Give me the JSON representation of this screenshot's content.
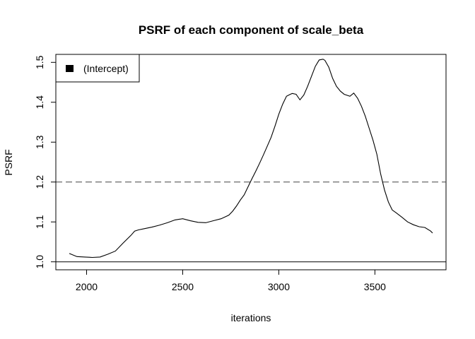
{
  "chart_data": {
    "type": "line",
    "title": "PSRF of each component of scale_beta",
    "xlabel": "iterations",
    "ylabel": "PSRF",
    "xlim": [
      1840,
      3870
    ],
    "ylim": [
      0.98,
      1.52
    ],
    "x_ticks": [
      2000,
      2500,
      3000,
      3500
    ],
    "y_ticks": [
      1.0,
      1.1,
      1.2,
      1.3,
      1.4,
      1.5
    ],
    "x_tick_labels": [
      "2000",
      "2500",
      "3000",
      "3500"
    ],
    "y_tick_labels": [
      "1.0",
      "1.1",
      "1.2",
      "1.3",
      "1.4",
      "1.5"
    ],
    "reference_lines": [
      {
        "y": 1.0,
        "style": "solid"
      },
      {
        "y": 1.2,
        "style": "dashed"
      }
    ],
    "legend": {
      "position": "top-left",
      "entries": [
        "(Intercept)"
      ]
    },
    "grid": false,
    "series": [
      {
        "name": "(Intercept)",
        "color": "#000000",
        "x": [
          1910,
          1950,
          1990,
          2030,
          2070,
          2110,
          2150,
          2190,
          2230,
          2250,
          2270,
          2300,
          2340,
          2380,
          2420,
          2460,
          2500,
          2540,
          2580,
          2620,
          2660,
          2700,
          2740,
          2760,
          2780,
          2800,
          2820,
          2840,
          2860,
          2880,
          2900,
          2920,
          2940,
          2960,
          2980,
          3000,
          3020,
          3040,
          3060,
          3070,
          3090,
          3110,
          3130,
          3150,
          3170,
          3190,
          3210,
          3230,
          3240,
          3260,
          3280,
          3300,
          3320,
          3340,
          3370,
          3390,
          3410,
          3430,
          3450,
          3470,
          3490,
          3510,
          3530,
          3550,
          3570,
          3590,
          3610,
          3640,
          3670,
          3700,
          3730,
          3760,
          3790,
          3800
        ],
        "values": [
          1.021,
          1.013,
          1.012,
          1.011,
          1.012,
          1.019,
          1.027,
          1.047,
          1.066,
          1.077,
          1.08,
          1.083,
          1.087,
          1.092,
          1.098,
          1.105,
          1.108,
          1.103,
          1.099,
          1.098,
          1.103,
          1.108,
          1.117,
          1.127,
          1.14,
          1.155,
          1.168,
          1.188,
          1.208,
          1.227,
          1.247,
          1.268,
          1.29,
          1.312,
          1.34,
          1.37,
          1.395,
          1.415,
          1.42,
          1.422,
          1.42,
          1.406,
          1.418,
          1.44,
          1.465,
          1.49,
          1.506,
          1.508,
          1.505,
          1.488,
          1.46,
          1.44,
          1.428,
          1.42,
          1.415,
          1.423,
          1.41,
          1.39,
          1.365,
          1.335,
          1.305,
          1.27,
          1.22,
          1.18,
          1.15,
          1.13,
          1.123,
          1.112,
          1.1,
          1.093,
          1.088,
          1.086,
          1.077,
          1.072
        ]
      }
    ]
  }
}
